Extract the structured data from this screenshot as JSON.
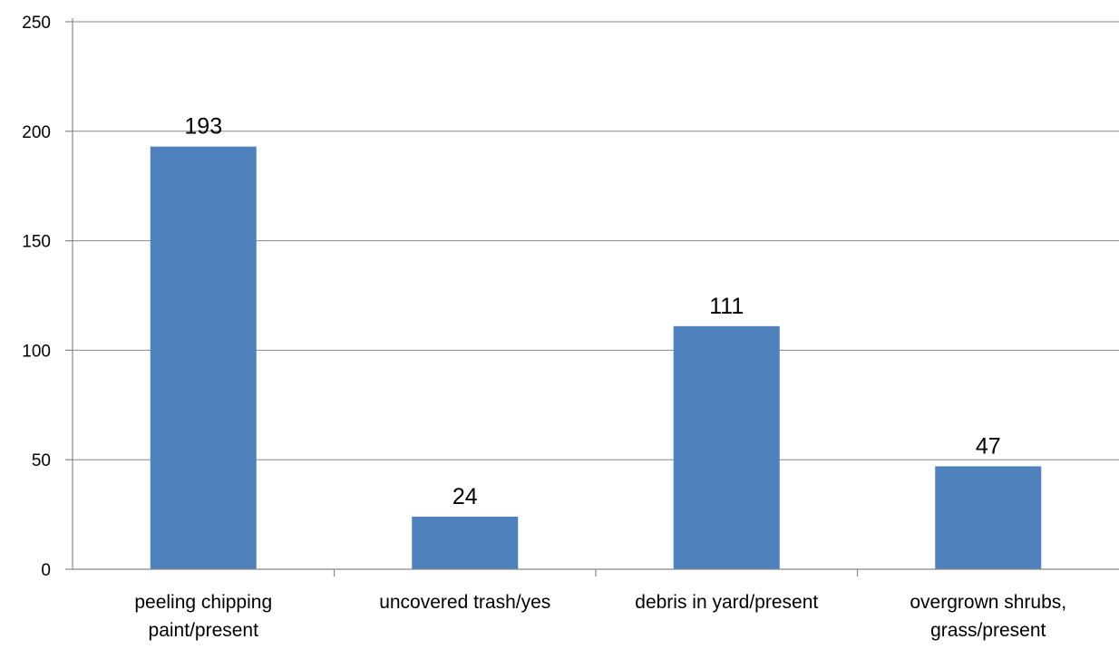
{
  "chart_data": {
    "type": "bar",
    "title": "",
    "xlabel": "",
    "ylabel": "",
    "categories": [
      [
        "peeling chipping",
        "paint/present"
      ],
      [
        "uncovered trash/yes"
      ],
      [
        "debris in yard/present"
      ],
      [
        "overgrown shrubs,",
        "grass/present"
      ]
    ],
    "values": [
      193,
      24,
      111,
      47
    ],
    "data_labels": [
      "193",
      "24",
      "111",
      "47"
    ],
    "ylim": [
      0,
      250
    ],
    "yticks": [
      0,
      50,
      100,
      150,
      200,
      250
    ],
    "grid": true,
    "legend": "none",
    "bar_color": "#4f81bd"
  }
}
